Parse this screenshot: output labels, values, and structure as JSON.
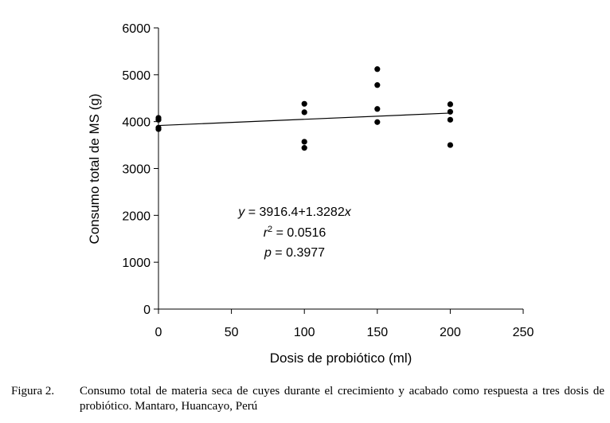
{
  "chart_data": {
    "type": "scatter",
    "xlabel": "Dosis de probiótico (ml)",
    "ylabel": "Consumo total de MS (g)",
    "xlim": [
      0,
      250
    ],
    "ylim": [
      0,
      6000
    ],
    "xticks": [
      0,
      50,
      100,
      150,
      200,
      250
    ],
    "yticks": [
      0,
      1000,
      2000,
      3000,
      4000,
      5000,
      6000
    ],
    "points": [
      {
        "x": 0,
        "y": 4080
      },
      {
        "x": 0,
        "y": 4040
      },
      {
        "x": 0,
        "y": 3870
      },
      {
        "x": 0,
        "y": 3840
      },
      {
        "x": 100,
        "y": 4380
      },
      {
        "x": 100,
        "y": 4200
      },
      {
        "x": 100,
        "y": 3570
      },
      {
        "x": 100,
        "y": 3440
      },
      {
        "x": 150,
        "y": 5120
      },
      {
        "x": 150,
        "y": 4780
      },
      {
        "x": 150,
        "y": 4270
      },
      {
        "x": 150,
        "y": 3990
      },
      {
        "x": 200,
        "y": 4370
      },
      {
        "x": 200,
        "y": 4210
      },
      {
        "x": 200,
        "y": 4040
      },
      {
        "x": 200,
        "y": 3500
      }
    ],
    "trendline": {
      "intercept": 3916.4,
      "slope": 1.3282,
      "x_range": [
        0,
        200
      ]
    },
    "annotations": {
      "equation": "y = 3916.4+1.3282x",
      "r2": "r2 = 0.0516",
      "p": "p = 0.3977"
    },
    "grid": false,
    "legend": "none"
  },
  "caption": {
    "label": "Figura 2.",
    "text": "Consumo total de materia seca de cuyes durante el crecimiento y acabado como respuesta a tres dosis de probiótico. Mantaro, Huancayo, Perú"
  }
}
